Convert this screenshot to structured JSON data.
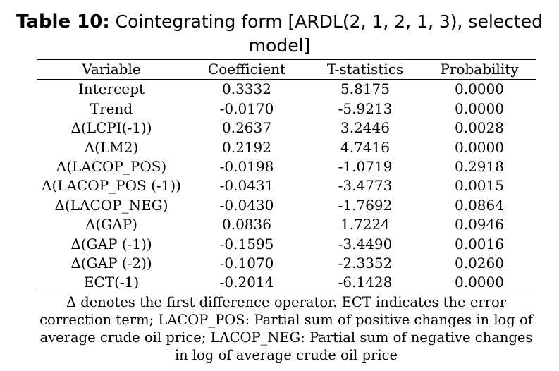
{
  "title": {
    "lead": "Table 10:",
    "text": " Cointegrating form [ARDL(2, 1, 2, 1, 3), selected model]"
  },
  "table": {
    "headers": [
      "Variable",
      "Coefficient",
      "T-statistics",
      "Probability"
    ],
    "rows": [
      [
        "Intercept",
        "0.3332",
        "5.8175",
        "0.0000"
      ],
      [
        "Trend",
        "-0.0170",
        "-5.9213",
        "0.0000"
      ],
      [
        "Δ(LCPI(-1))",
        "0.2637",
        "3.2446",
        "0.0028"
      ],
      [
        "Δ(LM2)",
        "0.2192",
        "4.7416",
        "0.0000"
      ],
      [
        "Δ(LACOP_POS)",
        "-0.0198",
        "-1.0719",
        "0.2918"
      ],
      [
        "Δ(LACOP_POS (-1))",
        "-0.0431",
        "-3.4773",
        "0.0015"
      ],
      [
        "Δ(LACOP_NEG)",
        "-0.0430",
        "-1.7692",
        "0.0864"
      ],
      [
        "Δ(GAP)",
        "0.0836",
        "1.7224",
        "0.0946"
      ],
      [
        "Δ(GAP (-1))",
        "-0.1595",
        "-3.4490",
        "0.0016"
      ],
      [
        "Δ(GAP (-2))",
        "-0.1070",
        "-2.3352",
        "0.0260"
      ],
      [
        "ECT(-1)",
        "-0.2014",
        "-6.1428",
        "0.0000"
      ]
    ]
  },
  "note": "Δ denotes the first difference operator. ECT indicates the error correction term; LACOP_POS: Partial sum of positive changes in log of average crude oil price; LACOP_NEG: Partial sum of negative changes in log of average crude oil price"
}
